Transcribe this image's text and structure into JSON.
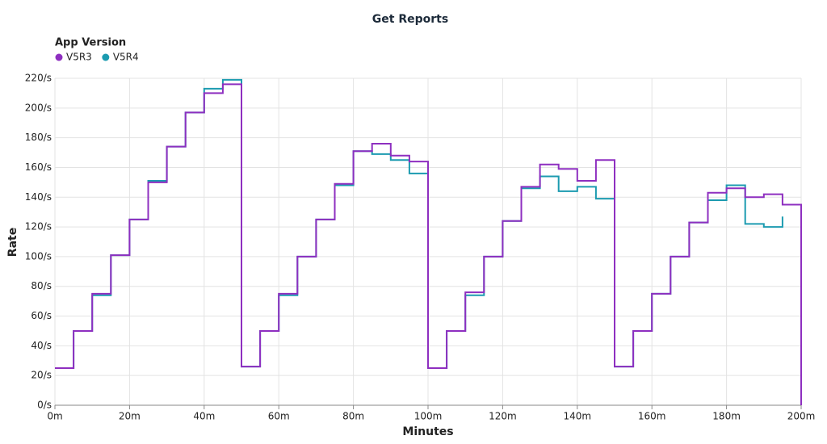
{
  "chart_data": {
    "type": "step-line",
    "title": "Get Reports",
    "legend_title": "App Version",
    "x_label": "Minutes",
    "y_label": "Rate",
    "grid": true,
    "x": [
      0,
      5,
      10,
      15,
      20,
      25,
      30,
      35,
      40,
      45,
      50,
      55,
      60,
      65,
      70,
      75,
      80,
      85,
      90,
      95,
      100,
      105,
      110,
      115,
      120,
      125,
      130,
      135,
      140,
      145,
      150,
      155,
      160,
      165,
      170,
      175,
      180,
      185,
      190,
      195,
      200
    ],
    "series": [
      {
        "name": "V5R3",
        "color": "#8e2fc0",
        "values": [
          25,
          50,
          75,
          101,
          125,
          150,
          174,
          197,
          210,
          216,
          26,
          50,
          75,
          100,
          125,
          149,
          171,
          176,
          168,
          164,
          25,
          50,
          76,
          100,
          124,
          147,
          162,
          159,
          151,
          165,
          26,
          50,
          75,
          100,
          123,
          143,
          146,
          140,
          142,
          135,
          0
        ]
      },
      {
        "name": "V5R4",
        "color": "#1c9bb0",
        "values": [
          25,
          50,
          74,
          101,
          125,
          151,
          174,
          197,
          213,
          219,
          26,
          50,
          74,
          100,
          125,
          148,
          171,
          169,
          165,
          156,
          25,
          50,
          74,
          100,
          124,
          146,
          154,
          144,
          147,
          139,
          26,
          50,
          75,
          100,
          123,
          138,
          148,
          122,
          120,
          127,
          null
        ]
      }
    ],
    "xlim": [
      0,
      200
    ],
    "xticks": [
      {
        "value": 0,
        "label": "0m"
      },
      {
        "value": 20,
        "label": "20m"
      },
      {
        "value": 40,
        "label": "40m"
      },
      {
        "value": 60,
        "label": "60m"
      },
      {
        "value": 80,
        "label": "80m"
      },
      {
        "value": 100,
        "label": "100m"
      },
      {
        "value": 120,
        "label": "120m"
      },
      {
        "value": 140,
        "label": "140m"
      },
      {
        "value": 160,
        "label": "160m"
      },
      {
        "value": 180,
        "label": "180m"
      },
      {
        "value": 200,
        "label": "200m"
      }
    ],
    "ylim": [
      0,
      220
    ],
    "yticks": [
      {
        "value": 0,
        "label": "0/s"
      },
      {
        "value": 20,
        "label": "20/s"
      },
      {
        "value": 40,
        "label": "40/s"
      },
      {
        "value": 60,
        "label": "60/s"
      },
      {
        "value": 80,
        "label": "80/s"
      },
      {
        "value": 100,
        "label": "100/s"
      },
      {
        "value": 120,
        "label": "120/s"
      },
      {
        "value": 140,
        "label": "140/s"
      },
      {
        "value": 160,
        "label": "160/s"
      },
      {
        "value": 180,
        "label": "180/s"
      },
      {
        "value": 200,
        "label": "200/s"
      },
      {
        "value": 220,
        "label": "220/s"
      }
    ]
  }
}
